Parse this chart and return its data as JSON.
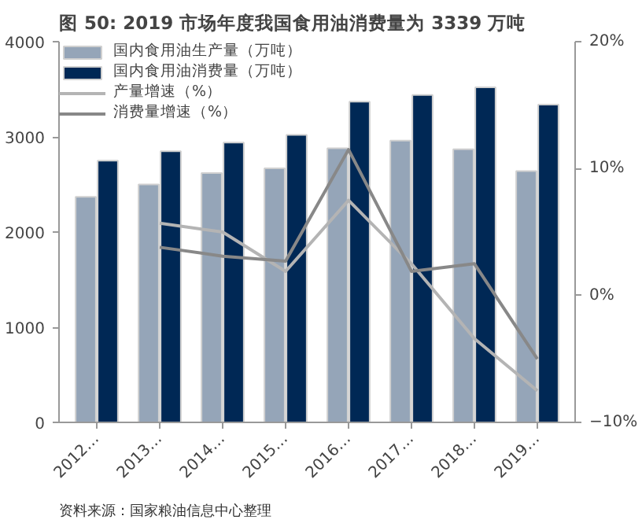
{
  "chart_data": {
    "type": "bar",
    "title": "图 50:  2019 市场年度我国食用油消费量为 3339 万吨",
    "annotations": [
      "资料来源：国家粮油信息中心整理"
    ],
    "categories": [
      "2012…",
      "2013…",
      "2014…",
      "2015…",
      "2016…",
      "2017…",
      "2018…",
      "2019…"
    ],
    "series": [
      {
        "name": "国内食用油生产量（万吨）",
        "color": "#95a5b8",
        "values": [
          2370,
          2500,
          2620,
          2670,
          2880,
          2960,
          2870,
          2640
        ]
      },
      {
        "name": "国内食用油消费量（万吨）",
        "color": "#002855",
        "values": [
          2750,
          2850,
          2940,
          3020,
          3370,
          3440,
          3520,
          3339
        ]
      },
      {
        "name": "产量增速（%）",
        "type": "line",
        "axis": "y2",
        "color": "#b4b4b4",
        "values": [
          null,
          5.7,
          5.0,
          1.9,
          7.5,
          2.5,
          -3.4,
          -7.5
        ]
      },
      {
        "name": "消费量增速（%）",
        "type": "line",
        "axis": "y2",
        "color": "#888888",
        "values": [
          null,
          3.8,
          3.1,
          2.7,
          11.5,
          1.9,
          2.5,
          -5.0
        ]
      }
    ],
    "ylim": [
      0,
      4000
    ],
    "yticks": [
      0,
      1000,
      2000,
      3000,
      4000
    ],
    "y2lim": [
      -10,
      20
    ],
    "y2ticks": [
      {
        "value": -10,
        "label": "−10%"
      },
      {
        "value": 0,
        "label": "0%"
      },
      {
        "value": 10,
        "label": "10%"
      },
      {
        "value": 20,
        "label": "20%"
      }
    ],
    "grid": false,
    "legend": "top left",
    "marker": "none",
    "line_style": "solid"
  }
}
